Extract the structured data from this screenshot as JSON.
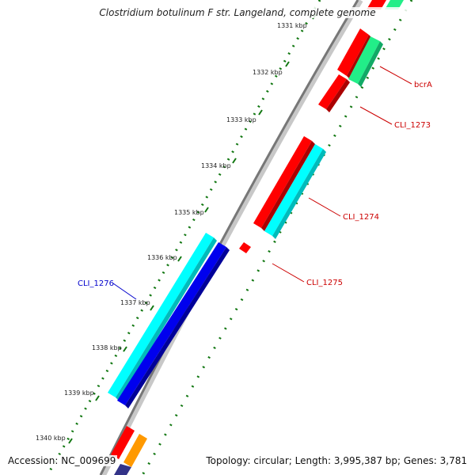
{
  "title": "Clostridium botulinum F str. Langeland, complete genome",
  "accession_text": "Accession: NC_009699",
  "stats_text": "Topology: circular; Length: 3,995,387 bp; Genes: 3,781",
  "ticks": [
    "1331 kbp",
    "1332 kbp",
    "1333 kbp",
    "1334 kbp",
    "1335 kbp",
    "1336 kbp",
    "1337 kbp",
    "1338 kbp",
    "1339 kbp",
    "1340 kbp"
  ],
  "genes": [
    {
      "label": "bcrA",
      "strand": "forward",
      "color": "#22ee88",
      "label_color": "#cc0000"
    },
    {
      "label": "CLI_1273",
      "strand": "forward",
      "color": "#ff0000",
      "label_color": "#cc0000"
    },
    {
      "label": "CLI_1274",
      "strand": "forward",
      "color": "#00ffff",
      "label_color": "#cc0000"
    },
    {
      "label": "CLI_1275",
      "strand": "forward",
      "color": "#ff0000",
      "label_color": "#cc0000"
    },
    {
      "label": "CLI_1276",
      "strand": "forward",
      "color": "#0000ee",
      "label_color": "#0000cc"
    }
  ],
  "colors": {
    "backbone": "#888888",
    "tick_dots": "#117711",
    "cds_red": "#ff0000",
    "cds_cyan": "#00ffff",
    "cds_blue": "#0000ee",
    "cds_green": "#22ee88",
    "cds_orange": "#ff9900"
  }
}
